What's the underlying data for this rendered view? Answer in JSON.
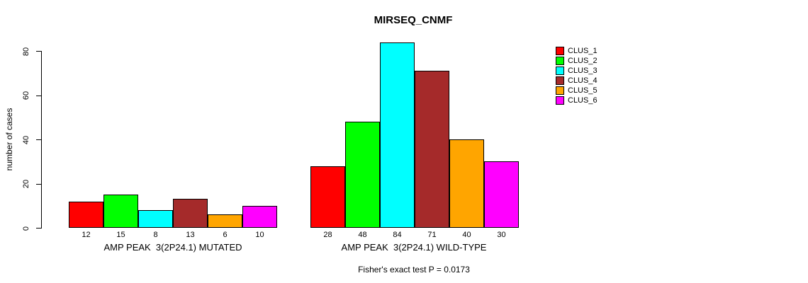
{
  "title": "MIRSEQ_CNMF",
  "subtitle": "Fisher's exact test P = 0.0173",
  "chart_data": {
    "type": "bar",
    "title": "MIRSEQ_CNMF",
    "ylabel": "number of cases",
    "xlabel": "",
    "ylim": [
      0,
      80
    ],
    "yticks": [
      0,
      20,
      40,
      60,
      80
    ],
    "grid": false,
    "legend_position": "right",
    "clusters": [
      "CLUS_1",
      "CLUS_2",
      "CLUS_3",
      "CLUS_4",
      "CLUS_5",
      "CLUS_6"
    ],
    "colors": [
      "#FF0000",
      "#00FF00",
      "#00FFFF",
      "#A52A2A",
      "#FFA500",
      "#FF00FF"
    ],
    "groups": [
      {
        "label": "AMP PEAK  3(2P24.1) MUTATED",
        "values": [
          12,
          15,
          8,
          13,
          6,
          10
        ]
      },
      {
        "label": "AMP PEAK  3(2P24.1) WILD-TYPE",
        "values": [
          28,
          48,
          84,
          71,
          40,
          30
        ]
      }
    ],
    "series": [
      {
        "name": "CLUS_1",
        "color": "#FF0000",
        "values": [
          12,
          28
        ]
      },
      {
        "name": "CLUS_2",
        "color": "#00FF00",
        "values": [
          15,
          48
        ]
      },
      {
        "name": "CLUS_3",
        "color": "#00FFFF",
        "values": [
          8,
          84
        ]
      },
      {
        "name": "CLUS_4",
        "color": "#A52A2A",
        "values": [
          13,
          71
        ]
      },
      {
        "name": "CLUS_5",
        "color": "#FFA500",
        "values": [
          6,
          40
        ]
      },
      {
        "name": "CLUS_6",
        "color": "#FF00FF",
        "values": [
          10,
          30
        ]
      }
    ],
    "annotation": "Fisher's exact test P = 0.0173"
  }
}
